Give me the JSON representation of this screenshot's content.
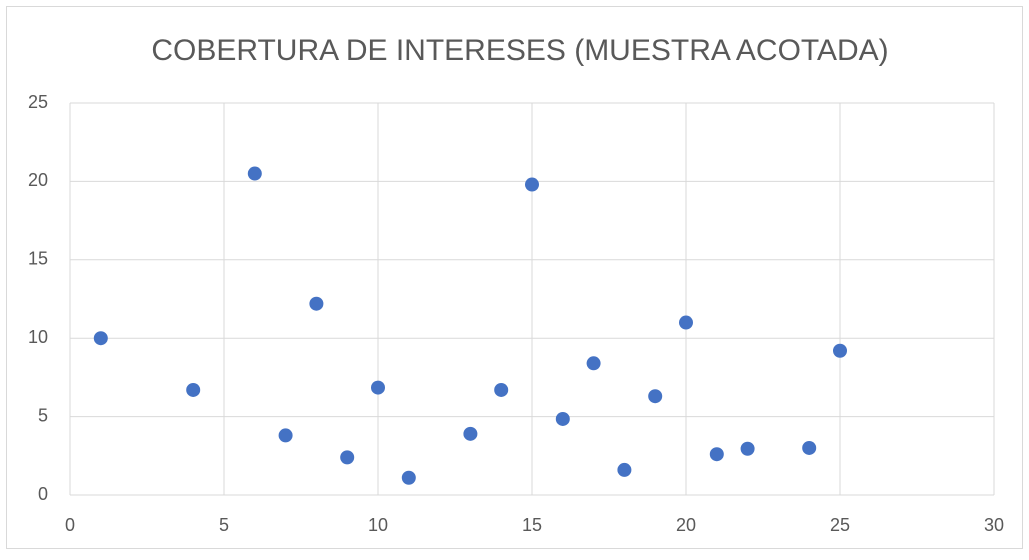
{
  "chart_data": {
    "type": "scatter",
    "title": "COBERTURA DE INTERESES (MUESTRA ACOTADA)",
    "series": [
      {
        "color": "#4472c4",
        "x": [
          1,
          4,
          6,
          7,
          8,
          9,
          10,
          11,
          13,
          14,
          15,
          16,
          17,
          18,
          19,
          20,
          21,
          22,
          24,
          25
        ],
        "values": [
          10.0,
          6.7,
          20.5,
          3.8,
          12.2,
          2.4,
          6.85,
          1.1,
          3.9,
          6.7,
          19.8,
          4.85,
          8.4,
          1.6,
          6.3,
          11.0,
          2.6,
          2.95,
          3.0,
          9.2
        ]
      }
    ],
    "xlim": [
      0,
      30
    ],
    "xticks": [
      0,
      5,
      10,
      15,
      20,
      25,
      30
    ],
    "ylim": [
      0,
      25
    ],
    "yticks": [
      0,
      5,
      10,
      15,
      20,
      25
    ],
    "grid": true
  }
}
